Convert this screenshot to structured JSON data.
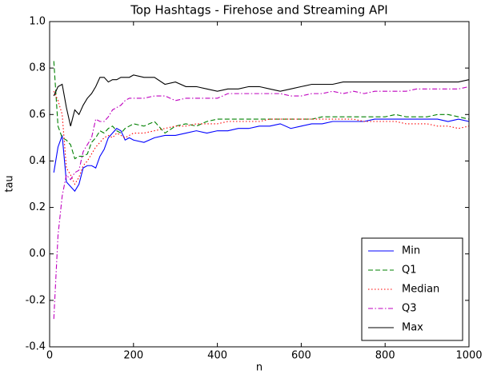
{
  "chart_data": {
    "type": "line",
    "title": "Top Hashtags - Firehose and Streaming API",
    "x_label": "n",
    "y_label": "tau",
    "x": [
      10,
      20,
      30,
      40,
      50,
      60,
      70,
      80,
      90,
      100,
      110,
      120,
      130,
      140,
      150,
      160,
      170,
      180,
      190,
      200,
      225,
      250,
      275,
      300,
      325,
      350,
      375,
      400,
      425,
      450,
      475,
      500,
      525,
      550,
      575,
      600,
      625,
      650,
      675,
      700,
      725,
      750,
      775,
      800,
      825,
      850,
      875,
      900,
      925,
      950,
      975,
      1000
    ],
    "series": [
      {
        "name": "Min",
        "color": "#0000ff",
        "dash": "solid",
        "values": [
          0.35,
          0.46,
          0.51,
          0.31,
          0.29,
          0.27,
          0.3,
          0.37,
          0.38,
          0.38,
          0.37,
          0.42,
          0.45,
          0.5,
          0.52,
          0.54,
          0.53,
          0.49,
          0.5,
          0.49,
          0.48,
          0.5,
          0.51,
          0.51,
          0.52,
          0.53,
          0.52,
          0.53,
          0.53,
          0.54,
          0.54,
          0.55,
          0.55,
          0.56,
          0.54,
          0.55,
          0.56,
          0.56,
          0.57,
          0.57,
          0.57,
          0.57,
          0.58,
          0.58,
          0.58,
          0.58,
          0.58,
          0.58,
          0.58,
          0.57,
          0.58,
          0.57
        ]
      },
      {
        "name": "Q1",
        "color": "#008000",
        "dash": "dashed",
        "values": [
          0.83,
          0.55,
          0.5,
          0.49,
          0.47,
          0.41,
          0.42,
          0.42,
          0.43,
          0.48,
          0.5,
          0.53,
          0.52,
          0.54,
          0.55,
          0.53,
          0.52,
          0.54,
          0.55,
          0.56,
          0.55,
          0.57,
          0.52,
          0.55,
          0.56,
          0.55,
          0.57,
          0.58,
          0.58,
          0.58,
          0.58,
          0.58,
          0.58,
          0.58,
          0.58,
          0.58,
          0.58,
          0.59,
          0.59,
          0.59,
          0.59,
          0.59,
          0.59,
          0.59,
          0.6,
          0.59,
          0.59,
          0.59,
          0.6,
          0.6,
          0.59,
          0.58
        ]
      },
      {
        "name": "Median",
        "color": "#ff0000",
        "dash": "dotted",
        "values": [
          0.7,
          0.66,
          0.6,
          0.37,
          0.34,
          0.3,
          0.33,
          0.38,
          0.4,
          0.43,
          0.46,
          0.48,
          0.5,
          0.51,
          0.5,
          0.52,
          0.51,
          0.5,
          0.51,
          0.52,
          0.52,
          0.53,
          0.54,
          0.55,
          0.55,
          0.56,
          0.56,
          0.56,
          0.57,
          0.57,
          0.57,
          0.57,
          0.58,
          0.58,
          0.58,
          0.58,
          0.58,
          0.58,
          0.58,
          0.58,
          0.58,
          0.57,
          0.57,
          0.57,
          0.57,
          0.56,
          0.56,
          0.56,
          0.55,
          0.55,
          0.54,
          0.55
        ]
      },
      {
        "name": "Q3",
        "color": "#bf00bf",
        "dash": "dashdot",
        "values": [
          -0.28,
          0.08,
          0.25,
          0.34,
          0.32,
          0.35,
          0.36,
          0.44,
          0.47,
          0.5,
          0.58,
          0.57,
          0.57,
          0.59,
          0.62,
          0.63,
          0.64,
          0.66,
          0.67,
          0.67,
          0.67,
          0.68,
          0.68,
          0.66,
          0.67,
          0.67,
          0.67,
          0.67,
          0.69,
          0.69,
          0.69,
          0.69,
          0.69,
          0.69,
          0.68,
          0.68,
          0.69,
          0.69,
          0.7,
          0.69,
          0.7,
          0.69,
          0.7,
          0.7,
          0.7,
          0.7,
          0.71,
          0.71,
          0.71,
          0.71,
          0.71,
          0.72
        ]
      },
      {
        "name": "Max",
        "color": "#000000",
        "dash": "solid",
        "values": [
          0.68,
          0.72,
          0.73,
          0.63,
          0.55,
          0.62,
          0.6,
          0.64,
          0.67,
          0.69,
          0.72,
          0.76,
          0.76,
          0.74,
          0.75,
          0.75,
          0.76,
          0.76,
          0.76,
          0.77,
          0.76,
          0.76,
          0.73,
          0.74,
          0.72,
          0.72,
          0.71,
          0.7,
          0.71,
          0.71,
          0.72,
          0.72,
          0.71,
          0.7,
          0.71,
          0.72,
          0.73,
          0.73,
          0.73,
          0.74,
          0.74,
          0.74,
          0.74,
          0.74,
          0.74,
          0.74,
          0.74,
          0.74,
          0.74,
          0.74,
          0.74,
          0.75
        ]
      }
    ],
    "xlim": [
      0,
      1000
    ],
    "xticks": [
      0,
      200,
      400,
      600,
      800,
      1000
    ],
    "ylim": [
      -0.4,
      1.0
    ],
    "yticks": [
      -0.4,
      -0.2,
      {
        "value": 0,
        "label": "0.0"
      },
      0.2,
      0.4,
      0.6,
      0.8,
      {
        "value": 1.0,
        "label": "1.0"
      }
    ],
    "grid": false,
    "legend": "lower right"
  }
}
